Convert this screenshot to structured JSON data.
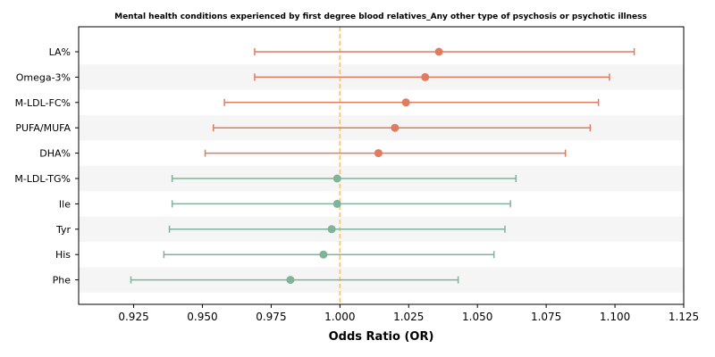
{
  "chart_data": {
    "type": "forest",
    "title": "Mental health conditions experienced by first degree blood relatives_Any other type of psychosis or psychotic illness",
    "xlabel": "Odds Ratio (OR)",
    "ylabel": "",
    "xlim": [
      0.905,
      1.125
    ],
    "xticks": [
      "0.925",
      "0.950",
      "0.975",
      "1.000",
      "1.025",
      "1.050",
      "1.075",
      "1.100",
      "1.125"
    ],
    "reference_line": 1.0,
    "rows": [
      {
        "label": "LA%",
        "or": 1.036,
        "ci_low": 0.969,
        "ci_high": 1.107,
        "group": "positive"
      },
      {
        "label": "Omega-3%",
        "or": 1.031,
        "ci_low": 0.969,
        "ci_high": 1.098,
        "group": "positive"
      },
      {
        "label": "M-LDL-FC%",
        "or": 1.024,
        "ci_low": 0.958,
        "ci_high": 1.094,
        "group": "positive"
      },
      {
        "label": "PUFA/MUFA",
        "or": 1.02,
        "ci_low": 0.954,
        "ci_high": 1.091,
        "group": "positive"
      },
      {
        "label": "DHA%",
        "or": 1.014,
        "ci_low": 0.951,
        "ci_high": 1.082,
        "group": "positive"
      },
      {
        "label": "M-LDL-TG%",
        "or": 0.999,
        "ci_low": 0.939,
        "ci_high": 1.064,
        "group": "negative"
      },
      {
        "label": "Ile",
        "or": 0.999,
        "ci_low": 0.939,
        "ci_high": 1.062,
        "group": "negative"
      },
      {
        "label": "Tyr",
        "or": 0.997,
        "ci_low": 0.938,
        "ci_high": 1.06,
        "group": "negative"
      },
      {
        "label": "His",
        "or": 0.994,
        "ci_low": 0.936,
        "ci_high": 1.056,
        "group": "negative"
      },
      {
        "label": "Phe",
        "or": 0.982,
        "ci_low": 0.924,
        "ci_high": 1.043,
        "group": "negative"
      }
    ],
    "colors": {
      "positive": "#e07b5f",
      "negative": "#7fb39a",
      "reference_line": "#f5c27a",
      "band": "#f5f5f5"
    },
    "grid": false
  }
}
